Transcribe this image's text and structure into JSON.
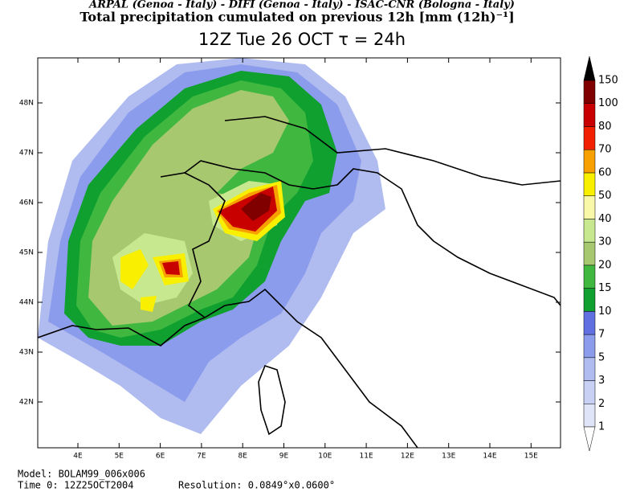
{
  "header": {
    "agencies": "ARPAL (Genoa - Italy)  -  DIFI (Genoa - Italy)  -  ISAC-CNR (Bologna - Italy)",
    "title": "Total precipitation cumulated on previous 12h [mm (12h)⁻¹]",
    "subtitle": "12Z Tue 26 OCT   τ = 24h"
  },
  "map": {
    "lat_labels": [
      "48N",
      "47N",
      "46N",
      "45N",
      "44N",
      "43N",
      "42N"
    ],
    "lon_labels": [
      "4E",
      "5E",
      "6E",
      "7E",
      "8E",
      "9E",
      "10E",
      "11E",
      "12E",
      "13E",
      "14E",
      "15E"
    ]
  },
  "legend": {
    "labels": [
      "1",
      "2",
      "3",
      "5",
      "7",
      "10",
      "15",
      "20",
      "30",
      "40",
      "50",
      "60",
      "70",
      "80",
      "100",
      "150"
    ]
  },
  "footer": {
    "model": "Model: BOLAM99_006x006",
    "time": "Time 0: 12Z25OCT2004",
    "resolution": "Resolution: 0.0849°x0.0600°"
  }
}
